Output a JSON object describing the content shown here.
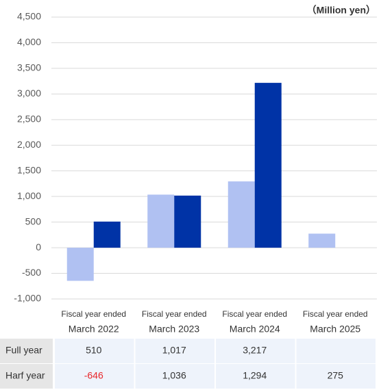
{
  "chart_data": {
    "type": "bar",
    "unit_note": "（Million yen）",
    "categories": [
      [
        "Fiscal year ended",
        "March 2022"
      ],
      [
        "Fiscal year ended",
        "March 2023"
      ],
      [
        "Fiscal year ended",
        "March 2024"
      ],
      [
        "Fiscal year ended",
        "March 2025"
      ]
    ],
    "series": [
      {
        "name": "Full year",
        "color": "#0033a6",
        "values": [
          510,
          1017,
          3217,
          null
        ],
        "value_labels": [
          "510",
          "1,017",
          "3,217",
          null
        ]
      },
      {
        "name": "Harf year",
        "color": "#b0c1f2",
        "values": [
          -646,
          1036,
          1294,
          275
        ],
        "value_labels": [
          "-646",
          "1,036",
          "1,294",
          "275"
        ]
      }
    ],
    "negative_label_color": "#e8262a",
    "ylim": [
      -1000,
      4500
    ],
    "yticks": [
      {
        "value": -1000,
        "label": "-1,000"
      },
      -500,
      0,
      500,
      {
        "value": 1000,
        "label": "1,000"
      },
      {
        "value": 1500,
        "label": "1,500"
      },
      {
        "value": 2000,
        "label": "2,000"
      },
      {
        "value": 2500,
        "label": "2,500"
      },
      {
        "value": 3000,
        "label": "3,000"
      },
      {
        "value": 3500,
        "label": "3,500"
      },
      {
        "value": 4000,
        "label": "4,000"
      },
      {
        "value": 4500,
        "label": "4,500"
      }
    ],
    "grid": true
  }
}
